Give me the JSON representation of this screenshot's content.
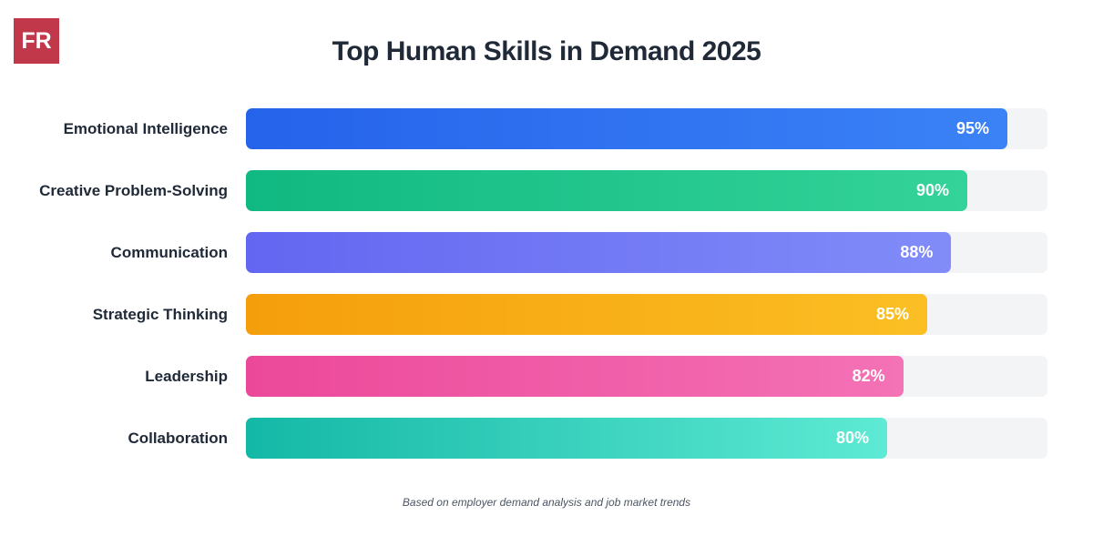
{
  "logo": {
    "text": "FR",
    "color": "#c0384a"
  },
  "chart_data": {
    "type": "bar",
    "orientation": "horizontal",
    "title": "Top Human Skills in Demand 2025",
    "categories": [
      "Emotional Intelligence",
      "Creative Problem-Solving",
      "Communication",
      "Strategic Thinking",
      "Leadership",
      "Collaboration"
    ],
    "values": [
      95,
      90,
      88,
      85,
      82,
      80
    ],
    "value_labels": [
      "95%",
      "90%",
      "88%",
      "85%",
      "82%",
      "80%"
    ],
    "xlim": [
      0,
      100
    ],
    "colors": [
      [
        "#2563eb",
        "#3b82f6"
      ],
      [
        "#10b981",
        "#34d399"
      ],
      [
        "#6366f1",
        "#818cf8"
      ],
      [
        "#f59e0b",
        "#fbbf24"
      ],
      [
        "#ec4899",
        "#f472b6"
      ],
      [
        "#14b8a6",
        "#5eead4"
      ]
    ],
    "grid": false,
    "legend": "none"
  },
  "footer": "Based on employer demand analysis and job market trends"
}
